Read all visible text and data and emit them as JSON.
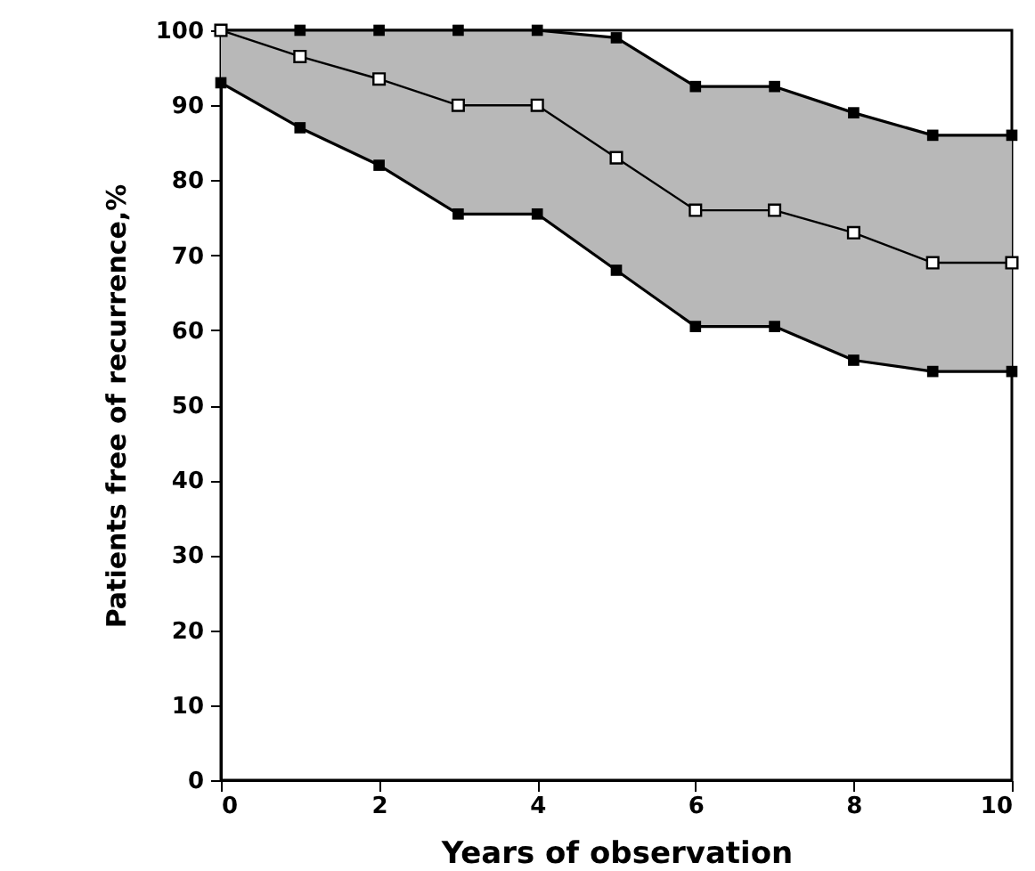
{
  "chart_data": {
    "type": "line",
    "xlabel": "Years of observation",
    "ylabel": "Patients free of recurrence,%",
    "x": [
      0,
      1,
      2,
      3,
      4,
      5,
      6,
      7,
      8,
      9,
      10
    ],
    "series": [
      {
        "color": "#000000",
        "values": [
          100,
          100,
          100,
          100,
          100,
          99,
          92.5,
          92.5,
          89,
          86,
          86
        ]
      },
      {
        "color": "#000000",
        "values": [
          93,
          87,
          82,
          75.5,
          75.5,
          68,
          60.5,
          60.5,
          56,
          54.5,
          54.5
        ]
      },
      {
        "color": "#000000",
        "values": [
          100,
          96.5,
          93.5,
          90,
          90,
          83,
          76,
          76,
          73,
          69,
          69
        ],
        "lower": [
          93,
          87,
          82,
          75.5,
          75.5,
          68,
          60.5,
          60.5,
          56,
          54.5,
          54.5
        ],
        "upper": [
          100,
          100,
          100,
          100,
          100,
          99,
          92.5,
          92.5,
          89,
          86,
          86
        ]
      }
    ],
    "xlim": [
      0,
      10
    ],
    "xticks": [
      0,
      2,
      4,
      6,
      8,
      10
    ],
    "ylim": [
      0,
      100
    ],
    "yticks": [
      0,
      10,
      20,
      30,
      40,
      50,
      60,
      70,
      80,
      90,
      100
    ],
    "marker": "square",
    "line_style": "solid"
  }
}
